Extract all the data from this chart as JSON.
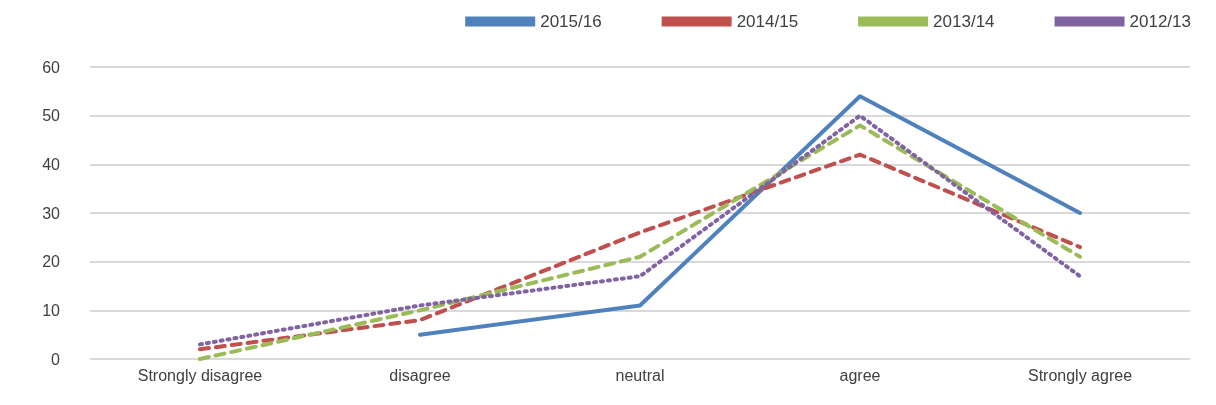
{
  "chart_data": {
    "type": "line",
    "categories": [
      "Strongly disagree",
      "disagree",
      "neutral",
      "agree",
      "Strongly agree"
    ],
    "series": [
      {
        "name": "2015/16",
        "color": "#4f81bd",
        "line_style": "solid",
        "values": [
          null,
          5,
          11,
          54,
          30
        ]
      },
      {
        "name": "2014/15",
        "color": "#c0504d",
        "line_style": "dashed",
        "values": [
          2,
          8,
          26,
          42,
          23
        ]
      },
      {
        "name": "2013/14",
        "color": "#9bbb59",
        "line_style": "dashed",
        "values": [
          0,
          10,
          21,
          48,
          21
        ]
      },
      {
        "name": "2012/13",
        "color": "#8064a2",
        "line_style": "dotted",
        "values": [
          3,
          11,
          17,
          50,
          17
        ]
      }
    ],
    "ylim": [
      0,
      60
    ],
    "yticks": [
      0,
      10,
      20,
      30,
      40,
      50,
      60
    ],
    "grid": "y",
    "legend": "top right",
    "marker": "none"
  }
}
